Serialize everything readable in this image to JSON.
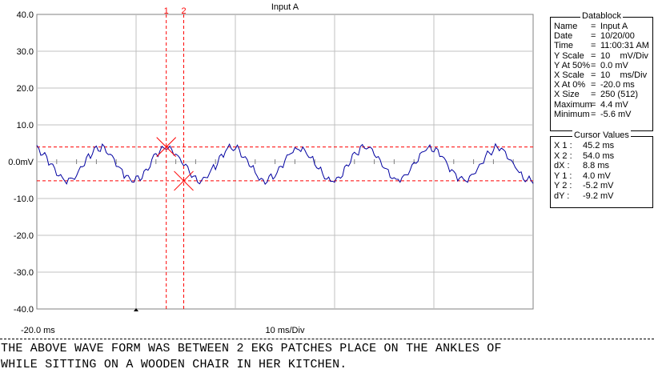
{
  "chart_data": {
    "type": "line",
    "title": "Input A",
    "xlabel": "10 ms/Div",
    "x_start_label": "-20.0 ms",
    "x_range_ms": [
      -20,
      230
    ],
    "ylim": [
      -40,
      40
    ],
    "yticks": [
      "40.0",
      "30.0",
      "20.0",
      "10.0",
      "0.0mV",
      "-10.0",
      "-20.0",
      "-30.0",
      "-40.0"
    ],
    "ytick_values": [
      40,
      30,
      20,
      10,
      0,
      -10,
      -20,
      -30,
      -40
    ],
    "grid": true,
    "series": [
      {
        "color": "#0000a0",
        "waveform": {
          "amplitude_mV": 4.4,
          "period_ms": 33.3,
          "offset_mV": -0.6,
          "ripple_mV": 0.8
        }
      }
    ],
    "cursors": [
      {
        "label": "1",
        "x_ms": 45.2,
        "y_mV": 4.0
      },
      {
        "label": "2",
        "x_ms": 54.0,
        "y_mV": -5.2
      }
    ],
    "h_cursor_levels_mV": [
      4.0,
      -5.2
    ]
  },
  "datablock": {
    "title": "Datablock",
    "rows": [
      {
        "key": "Name",
        "eq": "=",
        "value": "Input A"
      },
      {
        "key": "Date",
        "eq": "=",
        "value": "10/20/00"
      },
      {
        "key": "Time",
        "eq": "=",
        "value": "11:00:31 AM"
      },
      {
        "key": "Y Scale",
        "eq": "=",
        "value": "10    mV/Div"
      },
      {
        "key": "Y At 50%",
        "eq": "=",
        "value": "0.0 mV"
      },
      {
        "key": "X Scale",
        "eq": "=",
        "value": "10    ms/Div"
      },
      {
        "key": "X At 0%",
        "eq": "=",
        "value": "-20.0 ms"
      },
      {
        "key": "X Size",
        "eq": "=",
        "value": "250 (512)"
      },
      {
        "key": "Maximum",
        "eq": "=",
        "value": "4.4 mV"
      },
      {
        "key": "Minimum",
        "eq": "=",
        "value": "-5.6 mV"
      }
    ]
  },
  "cursor_values": {
    "title": "Cursor Values",
    "rows": [
      {
        "key": "X 1 :",
        "value": "45.2 ms"
      },
      {
        "key": "X 2 :",
        "value": "54.0 ms"
      },
      {
        "key": "dX :",
        "value": "8.8 ms"
      },
      {
        "key": "Y 1 :",
        "value": "4.0 mV"
      },
      {
        "key": "Y 2 :",
        "value": "-5.2 mV"
      },
      {
        "key": "dY :",
        "value": "-9.2 mV"
      }
    ]
  },
  "note": {
    "line1": "THE ABOVE WAVE FORM WAS BETWEEN 2 EKG PATCHES PLACE ON THE ANKLES OF",
    "line2": "WHILE SITTING ON A WOODEN CHAIR IN HER KITCHEN."
  },
  "colors": {
    "trace": "#0000a0",
    "cursor": "#ff0000",
    "grid": "#c0c0c0"
  }
}
